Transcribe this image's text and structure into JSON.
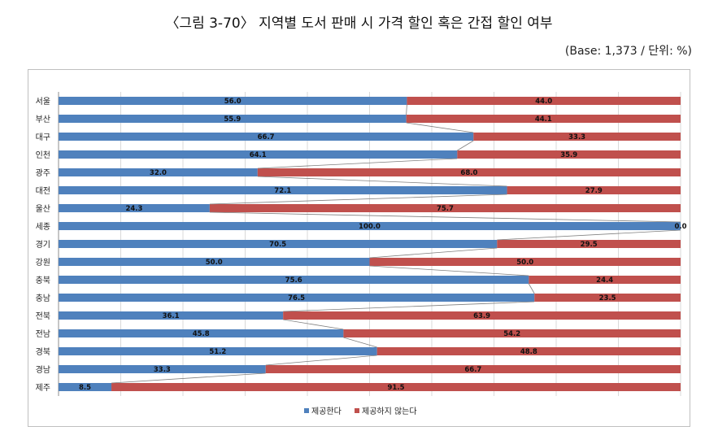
{
  "title": "〈그림 3-70〉 지역별 도서 판매 시 가격 할인 혹은 간접 할인 여부",
  "subtitle": "(Base: 1,373 / 단위: %)",
  "chart_data": {
    "type": "bar",
    "orientation": "horizontal",
    "stacked": "100%",
    "categories": [
      "서울",
      "부산",
      "대구",
      "인천",
      "광주",
      "대전",
      "울산",
      "세종",
      "경기",
      "강원",
      "충북",
      "충남",
      "전북",
      "전남",
      "경북",
      "경남",
      "제주"
    ],
    "series": [
      {
        "name": "제공한다",
        "color": "#4f81bd",
        "values": [
          56.0,
          55.9,
          66.7,
          64.1,
          32.0,
          72.1,
          24.3,
          100.0,
          70.5,
          50.0,
          75.6,
          76.5,
          36.1,
          45.8,
          51.2,
          33.3,
          8.5
        ],
        "labels": [
          "56.0",
          "55.9",
          "66.7",
          "64.1",
          "32.0",
          "72.1",
          "24.3",
          "100.0",
          "70.5",
          "50.0",
          "75.6",
          "76.5",
          "36.1",
          "45.8",
          "51.2",
          "33.3",
          "8.5"
        ]
      },
      {
        "name": "제공하지 않는다",
        "color": "#c0504d",
        "values": [
          44.0,
          44.1,
          33.3,
          35.9,
          68.0,
          27.9,
          75.7,
          0.0,
          29.5,
          50.0,
          24.4,
          23.5,
          63.9,
          54.2,
          48.8,
          66.7,
          91.5
        ],
        "labels": [
          "44.0",
          "44.1",
          "33.3",
          "35.9",
          "68.0",
          "27.9",
          "75.7",
          "0.0",
          "29.5",
          "50.0",
          "24.4",
          "23.5",
          "63.9",
          "54.2",
          "48.8",
          "66.7",
          "91.5"
        ]
      }
    ],
    "xlim": [
      0,
      100
    ],
    "series_lines": true,
    "grid": true,
    "legend_position": "bottom"
  }
}
